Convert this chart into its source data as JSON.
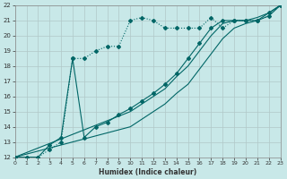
{
  "xlabel": "Humidex (Indice chaleur)",
  "bg_color": "#c8e8e8",
  "grid_color": "#b0c8c8",
  "line_color": "#006666",
  "xlim": [
    0,
    23
  ],
  "ylim": [
    12,
    22
  ],
  "xticks": [
    0,
    1,
    2,
    3,
    4,
    5,
    6,
    7,
    8,
    9,
    10,
    11,
    12,
    13,
    14,
    15,
    16,
    17,
    18,
    19,
    20,
    21,
    22,
    23
  ],
  "yticks": [
    12,
    13,
    14,
    15,
    16,
    17,
    18,
    19,
    20,
    21,
    22
  ],
  "series": [
    {
      "x": [
        0,
        1,
        2,
        3,
        4,
        5,
        6,
        7,
        8,
        9,
        10,
        11,
        12,
        13,
        14,
        15,
        16,
        17,
        18,
        19,
        20,
        21,
        22,
        23
      ],
      "y": [
        12,
        12,
        12,
        12.5,
        13,
        18.5,
        18.5,
        19.0,
        19.3,
        19.3,
        21.0,
        21.2,
        21.0,
        20.5,
        20.5,
        20.5,
        20.5,
        21.2,
        20.5,
        21.0,
        21.0,
        21.0,
        21.3,
        22.0
      ],
      "marker": "D",
      "markersize": 2.0,
      "linewidth": 0.8,
      "linestyle": ":"
    },
    {
      "x": [
        0,
        1,
        2,
        3,
        4,
        5,
        6,
        7,
        8,
        9,
        10,
        11,
        12,
        13,
        14,
        15,
        16,
        17,
        18,
        19,
        20,
        21,
        22,
        23
      ],
      "y": [
        12,
        12,
        12,
        12.8,
        13.3,
        18.5,
        13.3,
        14.0,
        14.3,
        14.8,
        15.2,
        15.7,
        16.2,
        16.8,
        17.5,
        18.5,
        19.5,
        20.5,
        21.0,
        21.0,
        21.0,
        21.0,
        21.5,
        22.0
      ],
      "marker": "D",
      "markersize": 2.0,
      "linewidth": 0.8,
      "linestyle": "-"
    },
    {
      "x": [
        0,
        10,
        11,
        12,
        13,
        14,
        15,
        16,
        17,
        18,
        19,
        20,
        21,
        22,
        23
      ],
      "y": [
        12,
        15.0,
        15.5,
        16.0,
        16.5,
        17.3,
        18.0,
        19.0,
        20.0,
        20.8,
        21.0,
        21.0,
        21.2,
        21.5,
        22.0
      ],
      "marker": null,
      "markersize": 0,
      "linewidth": 0.8,
      "linestyle": "-"
    },
    {
      "x": [
        0,
        10,
        11,
        12,
        13,
        14,
        15,
        16,
        17,
        18,
        19,
        20,
        21,
        22,
        23
      ],
      "y": [
        12,
        14.0,
        14.5,
        15.0,
        15.5,
        16.2,
        16.8,
        17.8,
        18.8,
        19.8,
        20.5,
        20.8,
        21.0,
        21.3,
        22.0
      ],
      "marker": null,
      "markersize": 0,
      "linewidth": 0.8,
      "linestyle": "-"
    }
  ]
}
